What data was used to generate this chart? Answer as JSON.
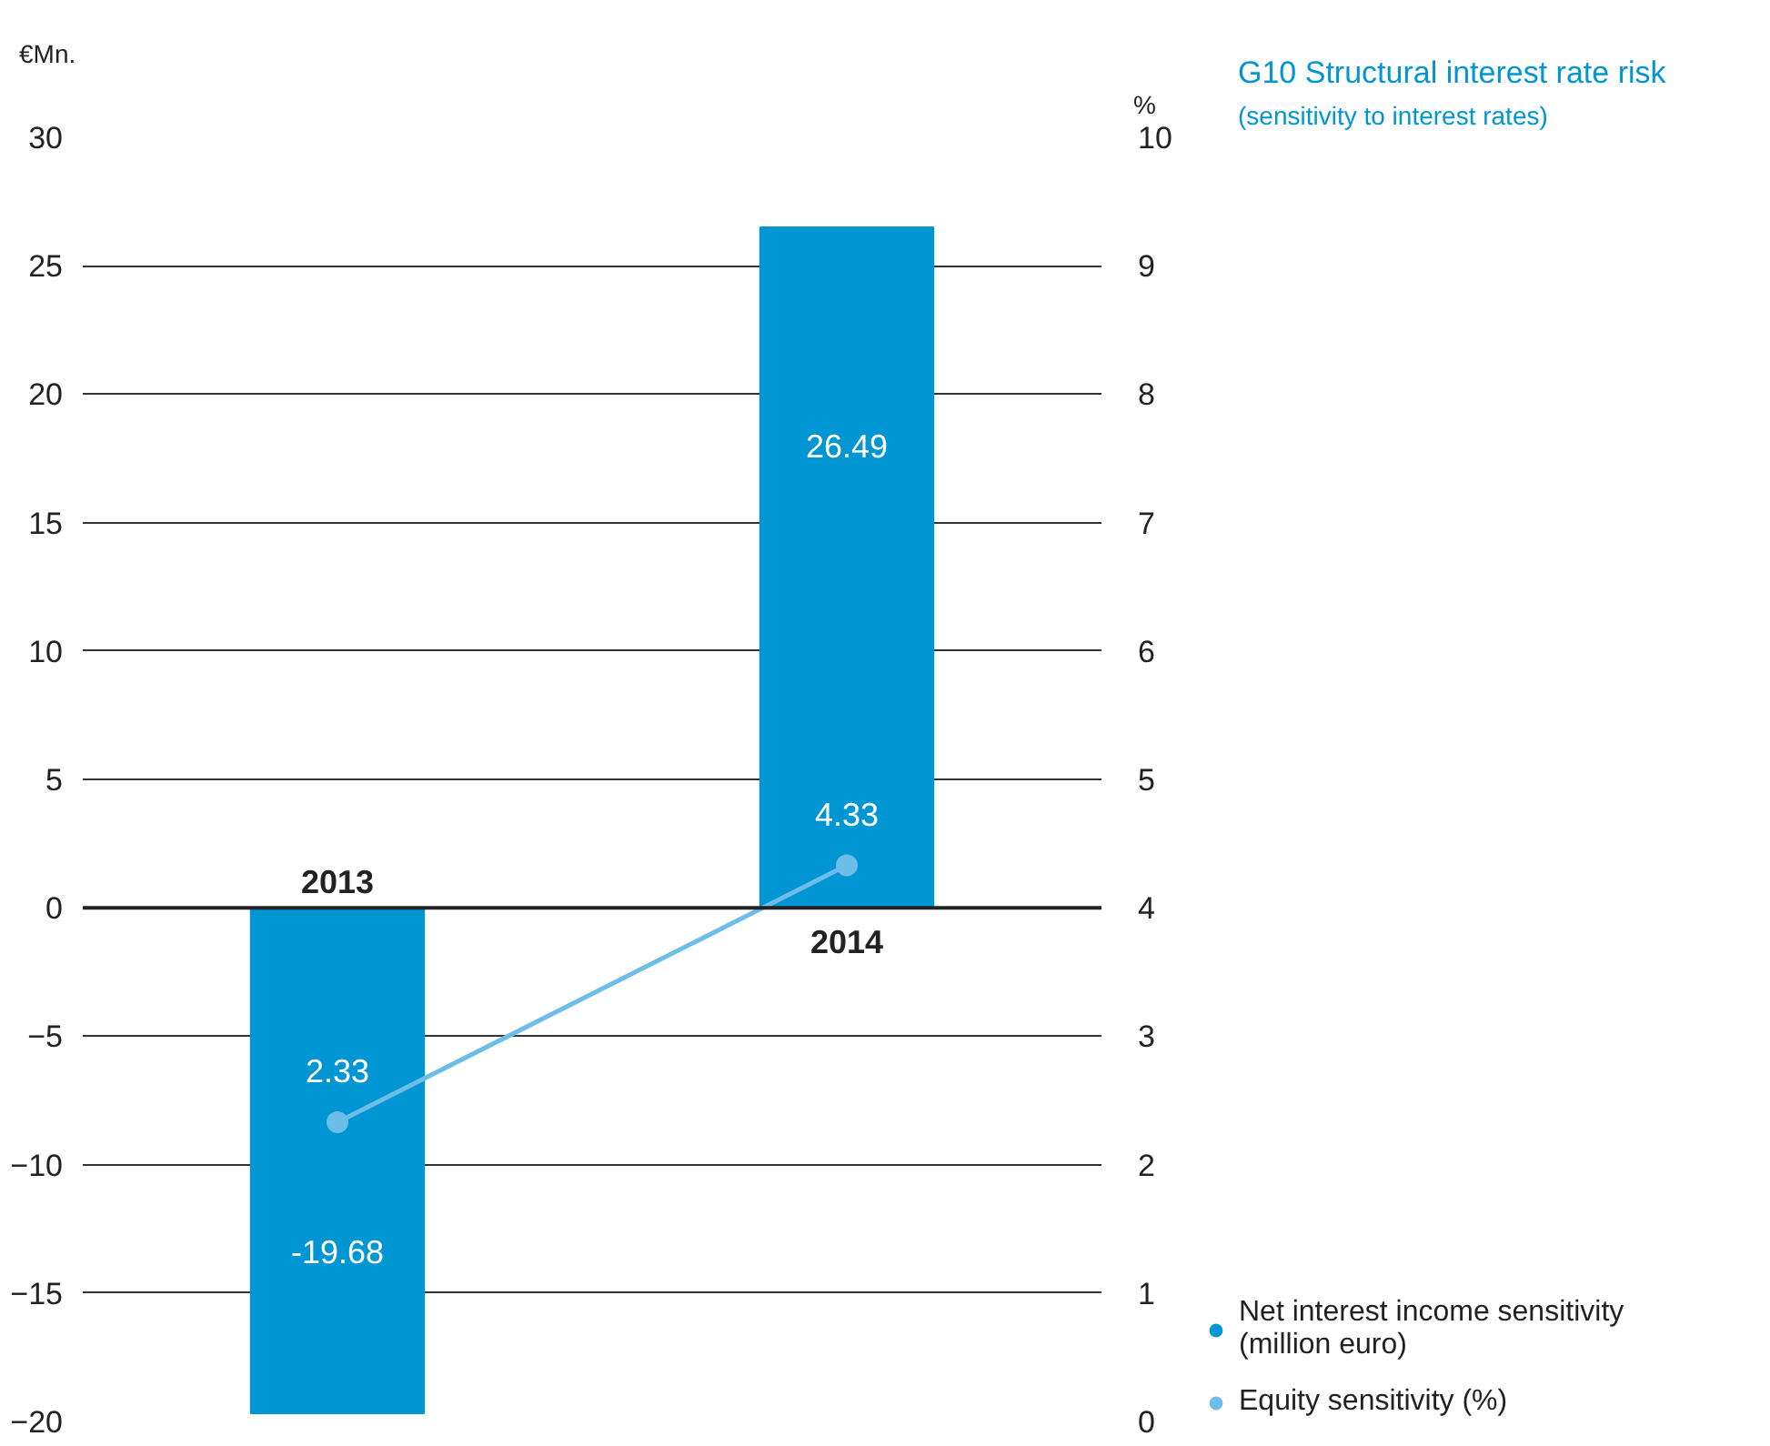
{
  "chart_data": {
    "type": "bar",
    "title": "G10  Structural interest rate risk",
    "subtitle": "(sensitivity to interest rates)",
    "ylabel": "€Mn.",
    "y2label": "%",
    "categories": [
      "2013",
      "2014"
    ],
    "series": [
      {
        "name": "Net interest income sensitivity\n(million euro)",
        "color": "#0095d3",
        "values": [
          -19.68,
          26.49
        ]
      },
      {
        "name": "Equity sensitivity (%)",
        "type": "line",
        "axis": "y2",
        "color": "#6cbde8",
        "values": [
          2.33,
          4.33
        ]
      }
    ],
    "ylim": [
      -20,
      30
    ],
    "yticks": [
      -20,
      -15,
      -10,
      -5,
      0,
      5,
      10,
      15,
      20,
      25,
      30
    ],
    "y2lim": [
      0,
      10
    ],
    "y2ticks": [
      0,
      1,
      2,
      3,
      4,
      5,
      6,
      7,
      8,
      9,
      10
    ],
    "grid": "y",
    "marker": "circle",
    "legend": "bottom right",
    "data_labels": true
  }
}
